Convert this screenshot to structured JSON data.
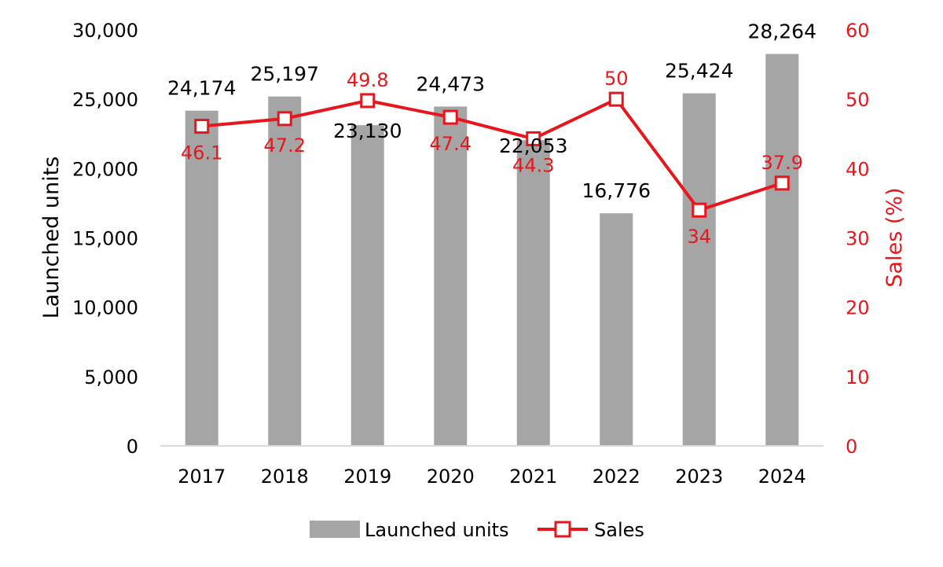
{
  "chart_data": {
    "type": "bar",
    "categories": [
      "2017",
      "2018",
      "2019",
      "2020",
      "2021",
      "2022",
      "2023",
      "2024"
    ],
    "series": [
      {
        "name": "Launched units",
        "type": "bar",
        "axis": "left",
        "values": [
          24174,
          25197,
          23130,
          24473,
          22053,
          16776,
          25424,
          28264
        ],
        "labels": [
          "24,174",
          "25,197",
          "23,130",
          "24,473",
          "22,053",
          "16,776",
          "25,424",
          "28,264"
        ]
      },
      {
        "name": "Sales",
        "type": "line",
        "axis": "right",
        "marker": "hollow-square",
        "values": [
          46.1,
          47.2,
          49.8,
          47.4,
          44.3,
          50,
          34,
          37.9
        ],
        "labels": [
          "46.1",
          "47.2",
          "49.8",
          "47.4",
          "44.3",
          "50",
          "34",
          "37.9"
        ]
      }
    ],
    "y_left": {
      "label": "Launched units",
      "ylim": [
        0,
        30000
      ],
      "ticks": [
        0,
        5000,
        10000,
        15000,
        20000,
        25000,
        30000
      ],
      "tick_labels": [
        "0",
        "5,000",
        "10,000",
        "15,000",
        "20,000",
        "25,000",
        "30,000"
      ]
    },
    "y_right": {
      "label": "Sales (%)",
      "ylim": [
        0,
        60
      ],
      "ticks": [
        0,
        10,
        20,
        30,
        40,
        50,
        60
      ],
      "tick_labels": [
        "0",
        "10",
        "20",
        "30",
        "40",
        "50",
        "60"
      ]
    },
    "xlabel": "",
    "title": "",
    "grid": false,
    "legend": {
      "position": "bottom",
      "entries": [
        "Launched units",
        "Sales"
      ]
    },
    "colors": {
      "bar": "#a5a5a5",
      "line": "#e8161c",
      "axis": "#d9d9d9",
      "text": "#000000"
    }
  }
}
